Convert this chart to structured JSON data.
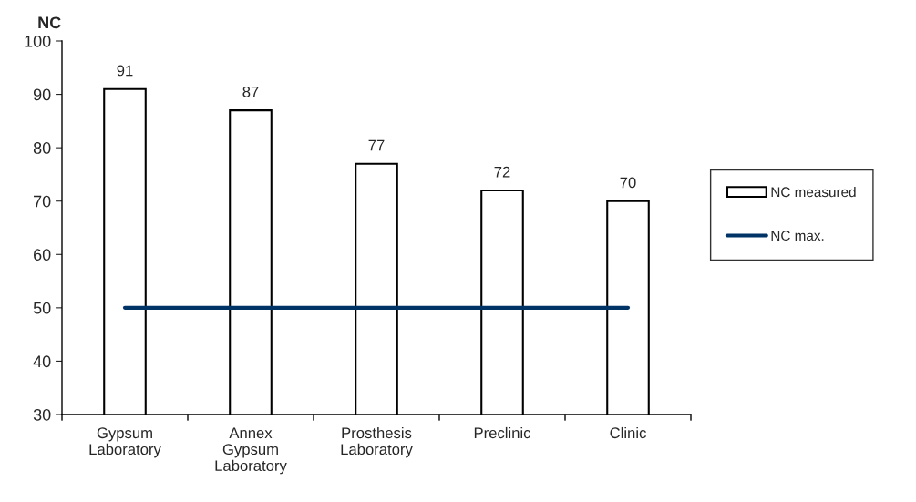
{
  "chart_data": {
    "type": "bar",
    "ylabel": "NC",
    "categories": [
      "Gypsum\nLaboratory",
      "Annex\nGypsum\nLaboratory",
      "Prosthesis\nLaboratory",
      "Preclinic",
      "Clinic"
    ],
    "series": [
      {
        "name": "NC measured",
        "color": "#ffffff",
        "values": [
          91,
          87,
          77,
          72,
          70
        ],
        "value_labels": [
          "91",
          "87",
          "77",
          "72",
          "70"
        ]
      },
      {
        "name": "NC max.",
        "type": "line",
        "color": "#003366",
        "values": [
          50,
          50,
          50,
          50,
          50
        ]
      }
    ],
    "ylim": [
      30,
      100
    ],
    "yticks": [
      30,
      40,
      50,
      60,
      70,
      80,
      90,
      100
    ],
    "grid": false,
    "legend": "right"
  }
}
